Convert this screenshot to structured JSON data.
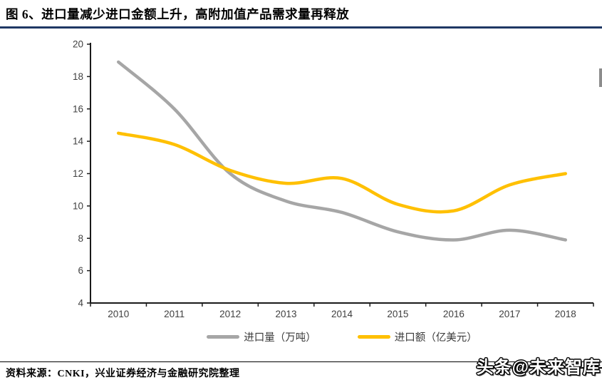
{
  "page": {
    "title": "图 6、进口量减少进口金额上升，高附加值产品需求量再释放",
    "source_note": "资料来源：CNKI，兴业证券经济与金融研究院整理",
    "watermark": "头条@未来智库"
  },
  "colors": {
    "title_rule": "#1f3864",
    "axis": "#1a1a1a",
    "tick_label": "#404040",
    "footer_rule": "#000000",
    "volume_line": "#a6a6a6",
    "value_line": "#ffc000"
  },
  "chart_data": {
    "type": "line",
    "smooth": true,
    "grid": false,
    "legend_position": "bottom",
    "title": "",
    "xlabel": "",
    "ylabel": "",
    "x": [
      "2010",
      "2011",
      "2012",
      "2013",
      "2014",
      "2015",
      "2016",
      "2017",
      "2018"
    ],
    "series": [
      {
        "name": "进口量（万吨）",
        "color": "#a6a6a6",
        "values": [
          18.9,
          16.0,
          12.0,
          10.3,
          9.6,
          8.4,
          7.9,
          8.5,
          7.9
        ]
      },
      {
        "name": "进口额（亿美元）",
        "color": "#ffc000",
        "values": [
          14.5,
          13.8,
          12.2,
          11.4,
          11.7,
          10.1,
          9.7,
          11.3,
          12.0
        ]
      }
    ],
    "ylim": [
      4,
      20
    ],
    "ytick_step": 2
  }
}
